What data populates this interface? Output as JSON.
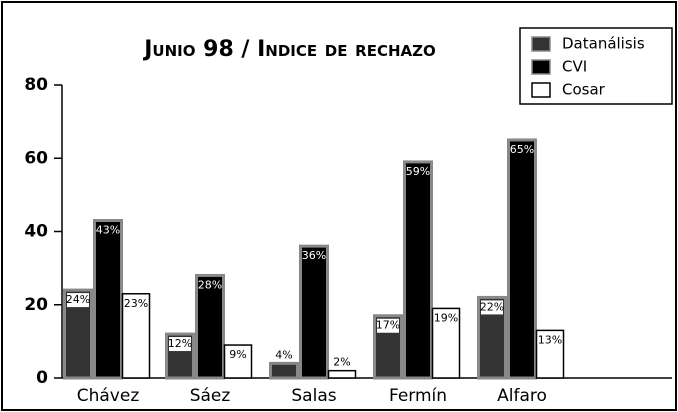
{
  "chart_data": {
    "type": "bar",
    "title": "Junio 98 / Indice de rechazo",
    "categories": [
      "Chávez",
      "Sáez",
      "Salas",
      "Fermín",
      "Alfaro"
    ],
    "series": [
      {
        "name": "Datanálisis",
        "color": "#333333",
        "values": [
          24,
          12,
          4,
          17,
          22
        ],
        "value_labels": [
          "24%",
          "12%",
          "4%",
          "17%",
          "22%"
        ]
      },
      {
        "name": "CVI",
        "color": "#000000",
        "values": [
          43,
          28,
          36,
          59,
          65
        ],
        "value_labels": [
          "43%",
          "28%",
          "36%",
          "59%",
          "65%"
        ]
      },
      {
        "name": "Cosar",
        "color": "#ffffff",
        "values": [
          23,
          9,
          2,
          19,
          13
        ],
        "value_labels": [
          "23%",
          "9%",
          "2%",
          "19%",
          "13%"
        ]
      }
    ],
    "ylim": [
      0,
      80
    ],
    "yticks": [
      0,
      20,
      40,
      60,
      80
    ],
    "grid": false
  }
}
